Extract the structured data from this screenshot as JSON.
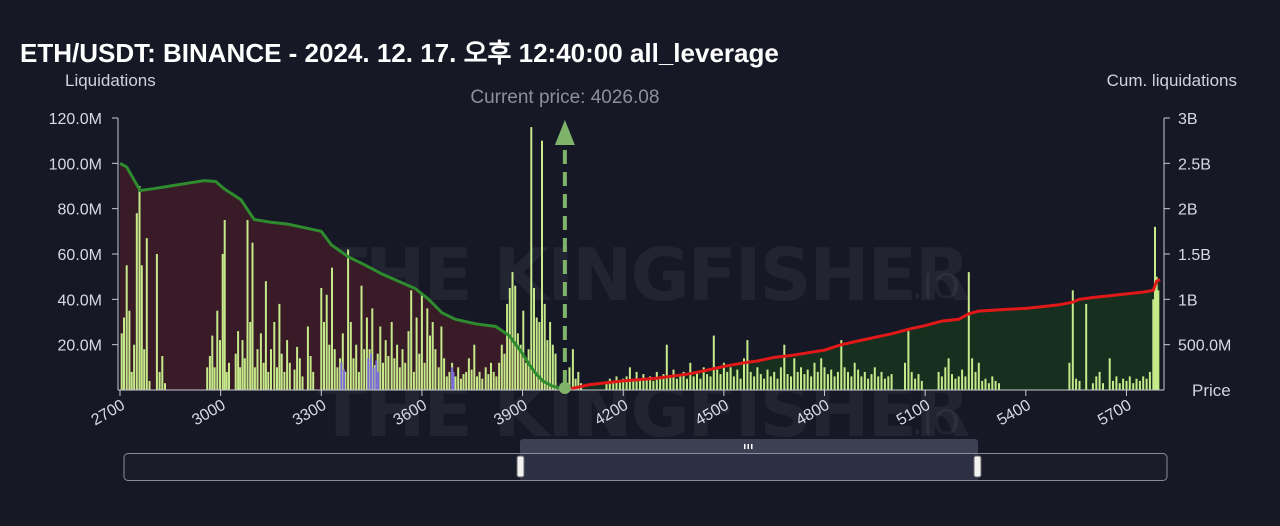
{
  "title": "ETH/USDT: BINANCE - 2024. 12. 17. 오후 12:40:00 all_leverage",
  "watermark": {
    "main": "THE KINGFISHER",
    "suffix": ".IO"
  },
  "colors": {
    "background": "#161826",
    "bar": "#c6e98a",
    "bar_alt": "#7a6ad6",
    "cum_left_line": "#2e8b2e",
    "cum_left_fill": "#3a1b26",
    "cum_right_line": "#e01818",
    "cum_right_fill": "#17301f",
    "current_price_marker": "#7fb36a"
  },
  "chart_data": {
    "type": "bar",
    "title": "ETH/USDT: BINANCE - 2024. 12. 17. 오후 12:40:00 all_leverage",
    "current_price_label": "Current price: 4026.08",
    "current_price": 4026.08,
    "xlabel": "Price",
    "ylabel_left": "Liquidations",
    "ylabel_right": "Cum. liquidations",
    "xlim": [
      2700,
      5800
    ],
    "ylim_left": [
      0,
      120
    ],
    "ylim_right": [
      0,
      3
    ],
    "x_ticks": [
      "2700",
      "3000",
      "3300",
      "3600",
      "3900",
      "4200",
      "4500",
      "4800",
      "5100",
      "5400",
      "5700"
    ],
    "y_left_ticks": [
      "20.0M",
      "40.0M",
      "60.0M",
      "80.0M",
      "100.0M",
      "120.0M"
    ],
    "y_right_ticks": [
      "500.0M",
      "1B",
      "1.5B",
      "2B",
      "2.5B",
      "3B"
    ],
    "grid": false,
    "units": {
      "liquidations": "M USDT",
      "cumulative": "B USDT"
    },
    "bars": [
      [
        2705,
        25
      ],
      [
        2712,
        32
      ],
      [
        2720,
        55
      ],
      [
        2728,
        35
      ],
      [
        2735,
        8
      ],
      [
        2742,
        20
      ],
      [
        2750,
        78
      ],
      [
        2758,
        90
      ],
      [
        2765,
        55
      ],
      [
        2772,
        18
      ],
      [
        2780,
        67
      ],
      [
        2788,
        4
      ],
      [
        2810,
        60
      ],
      [
        2818,
        8
      ],
      [
        2826,
        15
      ],
      [
        2834,
        3
      ],
      [
        2960,
        10
      ],
      [
        2968,
        15
      ],
      [
        2975,
        24
      ],
      [
        2982,
        10
      ],
      [
        2990,
        35
      ],
      [
        2998,
        22
      ],
      [
        3006,
        60
      ],
      [
        3012,
        75
      ],
      [
        3018,
        8
      ],
      [
        3025,
        12
      ],
      [
        3045,
        16
      ],
      [
        3052,
        26
      ],
      [
        3058,
        10
      ],
      [
        3065,
        22
      ],
      [
        3072,
        14
      ],
      [
        3080,
        75
      ],
      [
        3088,
        30
      ],
      [
        3095,
        65
      ],
      [
        3102,
        10
      ],
      [
        3110,
        18
      ],
      [
        3120,
        25
      ],
      [
        3128,
        12
      ],
      [
        3135,
        48
      ],
      [
        3142,
        8
      ],
      [
        3150,
        18
      ],
      [
        3160,
        30
      ],
      [
        3168,
        10
      ],
      [
        3175,
        38
      ],
      [
        3182,
        16
      ],
      [
        3190,
        8
      ],
      [
        3198,
        22
      ],
      [
        3206,
        12
      ],
      [
        3220,
        9
      ],
      [
        3228,
        19
      ],
      [
        3236,
        14
      ],
      [
        3244,
        6
      ],
      [
        3260,
        28
      ],
      [
        3268,
        15
      ],
      [
        3276,
        8
      ],
      [
        3300,
        45
      ],
      [
        3308,
        30
      ],
      [
        3316,
        42
      ],
      [
        3324,
        20
      ],
      [
        3332,
        54
      ],
      [
        3340,
        18
      ],
      [
        3348,
        10
      ],
      [
        3356,
        14
      ],
      [
        3364,
        25
      ],
      [
        3372,
        8
      ],
      [
        3380,
        62
      ],
      [
        3388,
        30
      ],
      [
        3396,
        14
      ],
      [
        3404,
        20
      ],
      [
        3412,
        8
      ],
      [
        3420,
        46
      ],
      [
        3428,
        18
      ],
      [
        3436,
        32
      ],
      [
        3444,
        18
      ],
      [
        3452,
        36
      ],
      [
        3460,
        11
      ],
      [
        3468,
        16
      ],
      [
        3476,
        28
      ],
      [
        3484,
        12
      ],
      [
        3492,
        22
      ],
      [
        3500,
        15
      ],
      [
        3510,
        30
      ],
      [
        3518,
        14
      ],
      [
        3526,
        20
      ],
      [
        3534,
        10
      ],
      [
        3542,
        18
      ],
      [
        3550,
        12
      ],
      [
        3560,
        26
      ],
      [
        3568,
        44
      ],
      [
        3576,
        8
      ],
      [
        3584,
        32
      ],
      [
        3592,
        16
      ],
      [
        3600,
        42
      ],
      [
        3608,
        12
      ],
      [
        3616,
        36
      ],
      [
        3624,
        24
      ],
      [
        3632,
        30
      ],
      [
        3640,
        18
      ],
      [
        3650,
        10
      ],
      [
        3658,
        28
      ],
      [
        3666,
        14
      ],
      [
        3674,
        6
      ],
      [
        3682,
        8
      ],
      [
        3690,
        12
      ],
      [
        3700,
        6
      ],
      [
        3708,
        10
      ],
      [
        3716,
        5
      ],
      [
        3724,
        7
      ],
      [
        3732,
        8
      ],
      [
        3740,
        14
      ],
      [
        3748,
        9
      ],
      [
        3756,
        20
      ],
      [
        3764,
        6
      ],
      [
        3772,
        8
      ],
      [
        3780,
        5
      ],
      [
        3790,
        10
      ],
      [
        3798,
        7
      ],
      [
        3806,
        12
      ],
      [
        3814,
        8
      ],
      [
        3822,
        6
      ],
      [
        3830,
        12
      ],
      [
        3838,
        20
      ],
      [
        3846,
        16
      ],
      [
        3854,
        38
      ],
      [
        3862,
        45
      ],
      [
        3870,
        52
      ],
      [
        3878,
        46
      ],
      [
        3886,
        25
      ],
      [
        3894,
        20
      ],
      [
        3902,
        35
      ],
      [
        3910,
        12
      ],
      [
        3918,
        18
      ],
      [
        3926,
        116
      ],
      [
        3934,
        45
      ],
      [
        3942,
        32
      ],
      [
        3950,
        30
      ],
      [
        3958,
        110
      ],
      [
        3966,
        38
      ],
      [
        3974,
        22
      ],
      [
        3982,
        30
      ],
      [
        3990,
        20
      ],
      [
        3998,
        16
      ],
      [
        4040,
        10
      ],
      [
        4050,
        18
      ],
      [
        4058,
        5
      ],
      [
        4066,
        8
      ],
      [
        4074,
        3
      ],
      [
        4150,
        3
      ],
      [
        4160,
        5
      ],
      [
        4170,
        4
      ],
      [
        4180,
        6
      ],
      [
        4190,
        4
      ],
      [
        4200,
        5
      ],
      [
        4210,
        6
      ],
      [
        4220,
        10
      ],
      [
        4230,
        4
      ],
      [
        4240,
        8
      ],
      [
        4250,
        5
      ],
      [
        4260,
        7
      ],
      [
        4270,
        5
      ],
      [
        4280,
        6
      ],
      [
        4290,
        4
      ],
      [
        4300,
        8
      ],
      [
        4310,
        5
      ],
      [
        4320,
        7
      ],
      [
        4330,
        20
      ],
      [
        4340,
        6
      ],
      [
        4350,
        9
      ],
      [
        4360,
        5
      ],
      [
        4370,
        6
      ],
      [
        4380,
        8
      ],
      [
        4390,
        5
      ],
      [
        4400,
        12
      ],
      [
        4410,
        6
      ],
      [
        4420,
        8
      ],
      [
        4430,
        5
      ],
      [
        4440,
        10
      ],
      [
        4450,
        7
      ],
      [
        4460,
        6
      ],
      [
        4470,
        24
      ],
      [
        4480,
        9
      ],
      [
        4490,
        7
      ],
      [
        4500,
        12
      ],
      [
        4510,
        8
      ],
      [
        4520,
        10
      ],
      [
        4530,
        6
      ],
      [
        4540,
        9
      ],
      [
        4550,
        5
      ],
      [
        4560,
        14
      ],
      [
        4570,
        22
      ],
      [
        4580,
        8
      ],
      [
        4590,
        6
      ],
      [
        4600,
        10
      ],
      [
        4610,
        7
      ],
      [
        4620,
        5
      ],
      [
        4630,
        9
      ],
      [
        4640,
        6
      ],
      [
        4650,
        8
      ],
      [
        4660,
        5
      ],
      [
        4670,
        10
      ],
      [
        4680,
        20
      ],
      [
        4690,
        7
      ],
      [
        4700,
        6
      ],
      [
        4710,
        14
      ],
      [
        4720,
        8
      ],
      [
        4730,
        10
      ],
      [
        4740,
        7
      ],
      [
        4750,
        9
      ],
      [
        4760,
        6
      ],
      [
        4770,
        12
      ],
      [
        4780,
        8
      ],
      [
        4790,
        14
      ],
      [
        4800,
        10
      ],
      [
        4810,
        7
      ],
      [
        4820,
        9
      ],
      [
        4830,
        6
      ],
      [
        4840,
        8
      ],
      [
        4850,
        22
      ],
      [
        4860,
        10
      ],
      [
        4870,
        8
      ],
      [
        4880,
        6
      ],
      [
        4890,
        12
      ],
      [
        4900,
        9
      ],
      [
        4910,
        6
      ],
      [
        4920,
        8
      ],
      [
        4930,
        5
      ],
      [
        4940,
        7
      ],
      [
        4950,
        10
      ],
      [
        4960,
        6
      ],
      [
        4970,
        8
      ],
      [
        4980,
        5
      ],
      [
        4990,
        6
      ],
      [
        5000,
        7
      ],
      [
        5040,
        12
      ],
      [
        5050,
        26
      ],
      [
        5060,
        8
      ],
      [
        5070,
        5
      ],
      [
        5080,
        7
      ],
      [
        5090,
        4
      ],
      [
        5140,
        8
      ],
      [
        5150,
        6
      ],
      [
        5160,
        10
      ],
      [
        5170,
        14
      ],
      [
        5180,
        7
      ],
      [
        5190,
        5
      ],
      [
        5200,
        6
      ],
      [
        5210,
        9
      ],
      [
        5220,
        6
      ],
      [
        5230,
        52
      ],
      [
        5240,
        14
      ],
      [
        5250,
        8
      ],
      [
        5260,
        12
      ],
      [
        5270,
        4
      ],
      [
        5280,
        5
      ],
      [
        5290,
        3
      ],
      [
        5300,
        6
      ],
      [
        5310,
        4
      ],
      [
        5320,
        3
      ],
      [
        5530,
        12
      ],
      [
        5540,
        44
      ],
      [
        5550,
        5
      ],
      [
        5560,
        4
      ],
      [
        5580,
        38
      ],
      [
        5600,
        3
      ],
      [
        5610,
        6
      ],
      [
        5620,
        8
      ],
      [
        5630,
        3
      ],
      [
        5650,
        14
      ],
      [
        5660,
        4
      ],
      [
        5670,
        6
      ],
      [
        5680,
        3
      ],
      [
        5690,
        5
      ],
      [
        5700,
        4
      ],
      [
        5710,
        6
      ],
      [
        5720,
        3
      ],
      [
        5730,
        5
      ],
      [
        5740,
        4
      ],
      [
        5750,
        6
      ],
      [
        5760,
        5
      ],
      [
        5770,
        8
      ],
      [
        5780,
        40
      ],
      [
        5785,
        72
      ],
      [
        5790,
        50
      ],
      [
        5795,
        44
      ]
    ],
    "purple_bars": [
      [
        3360,
        12
      ],
      [
        3368,
        9
      ],
      [
        3440,
        14
      ],
      [
        3448,
        16
      ],
      [
        3456,
        10
      ],
      [
        3464,
        13
      ],
      [
        3470,
        8
      ],
      [
        3690,
        10
      ],
      [
        3694,
        8
      ]
    ],
    "cum_left": [
      [
        2700,
        2.5
      ],
      [
        2720,
        2.46
      ],
      [
        2760,
        2.2
      ],
      [
        2800,
        2.22
      ],
      [
        2850,
        2.25
      ],
      [
        2900,
        2.28
      ],
      [
        2950,
        2.31
      ],
      [
        2985,
        2.3
      ],
      [
        3010,
        2.22
      ],
      [
        3060,
        2.1
      ],
      [
        3100,
        1.88
      ],
      [
        3150,
        1.85
      ],
      [
        3200,
        1.83
      ],
      [
        3250,
        1.79
      ],
      [
        3300,
        1.75
      ],
      [
        3330,
        1.6
      ],
      [
        3380,
        1.47
      ],
      [
        3430,
        1.38
      ],
      [
        3480,
        1.28
      ],
      [
        3530,
        1.2
      ],
      [
        3580,
        1.12
      ],
      [
        3620,
        1.0
      ],
      [
        3660,
        0.85
      ],
      [
        3700,
        0.78
      ],
      [
        3760,
        0.73
      ],
      [
        3820,
        0.7
      ],
      [
        3860,
        0.6
      ],
      [
        3880,
        0.5
      ],
      [
        3900,
        0.4
      ],
      [
        3920,
        0.28
      ],
      [
        3940,
        0.18
      ],
      [
        3960,
        0.1
      ],
      [
        3985,
        0.05
      ],
      [
        4026,
        0.0
      ]
    ],
    "cum_right": [
      [
        4026,
        0.0
      ],
      [
        4100,
        0.06
      ],
      [
        4200,
        0.1
      ],
      [
        4300,
        0.13
      ],
      [
        4400,
        0.18
      ],
      [
        4450,
        0.22
      ],
      [
        4500,
        0.26
      ],
      [
        4560,
        0.3
      ],
      [
        4600,
        0.32
      ],
      [
        4650,
        0.36
      ],
      [
        4700,
        0.38
      ],
      [
        4750,
        0.41
      ],
      [
        4800,
        0.44
      ],
      [
        4850,
        0.5
      ],
      [
        4900,
        0.54
      ],
      [
        4950,
        0.58
      ],
      [
        5000,
        0.62
      ],
      [
        5050,
        0.67
      ],
      [
        5100,
        0.71
      ],
      [
        5150,
        0.76
      ],
      [
        5200,
        0.78
      ],
      [
        5230,
        0.84
      ],
      [
        5260,
        0.87
      ],
      [
        5300,
        0.88
      ],
      [
        5350,
        0.89
      ],
      [
        5400,
        0.9
      ],
      [
        5450,
        0.92
      ],
      [
        5500,
        0.94
      ],
      [
        5540,
        0.97
      ],
      [
        5560,
        1.0
      ],
      [
        5600,
        1.02
      ],
      [
        5650,
        1.04
      ],
      [
        5700,
        1.06
      ],
      [
        5750,
        1.08
      ],
      [
        5780,
        1.1
      ],
      [
        5790,
        1.2
      ],
      [
        5800,
        1.22
      ]
    ]
  }
}
